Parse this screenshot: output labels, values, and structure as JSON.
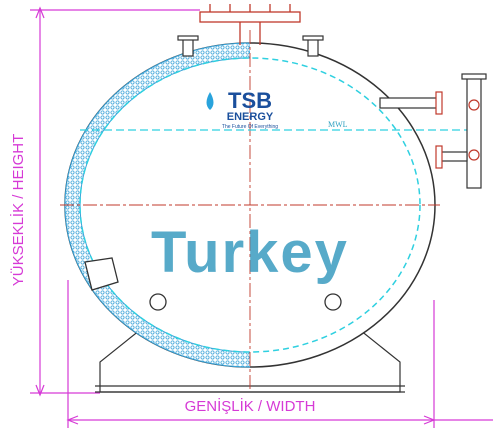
{
  "labels": {
    "height": "YÜKSEKLİK / HEIGHT",
    "width": "GENİŞLİK / WIDTH",
    "water_level": "MWL"
  },
  "logo": {
    "name": "TSB",
    "subtitle": "ENERGY",
    "tagline": "The Future Of Everything"
  },
  "watermark": "Turkey"
}
